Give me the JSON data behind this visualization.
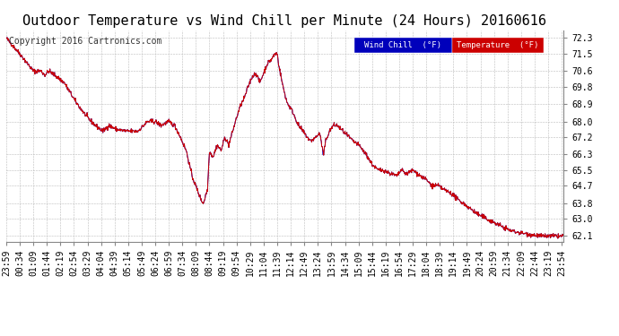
{
  "title": "Outdoor Temperature vs Wind Chill per Minute (24 Hours) 20160616",
  "copyright": "Copyright 2016 Cartronics.com",
  "yticks": [
    62.1,
    63.0,
    63.8,
    64.7,
    65.5,
    66.3,
    67.2,
    68.0,
    68.9,
    69.8,
    70.6,
    71.5,
    72.3
  ],
  "ymin": 61.8,
  "ymax": 72.7,
  "background_color": "#ffffff",
  "grid_color": "#bbbbbb",
  "temp_color": "#cc0000",
  "wind_chill_color": "#0000cc",
  "legend_temp_bg": "#cc0000",
  "legend_wc_bg": "#0000bb",
  "legend_text_color": "#ffffff",
  "title_fontsize": 11,
  "copyright_fontsize": 7,
  "tick_fontsize": 7
}
